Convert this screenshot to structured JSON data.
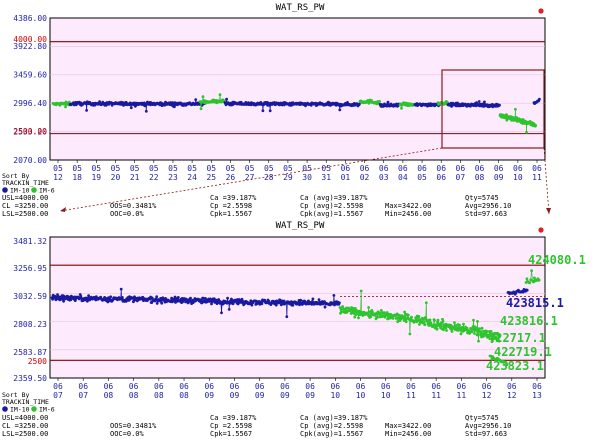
{
  "chart_data": [
    {
      "type": "scatter",
      "title": "WAT_RS_PW",
      "ylim": [
        2070.0,
        4386.0
      ],
      "y_tick_labels": [
        "4386.00",
        "3922.80",
        "3459.60",
        "2996.40",
        "2533.20",
        "2070.00"
      ],
      "control_lines": [
        {
          "label": "4000.00",
          "value": 4000.0
        },
        {
          "label": "2500.00",
          "value": 2500.0
        }
      ],
      "x_tick_labels": [
        [
          "05",
          "12"
        ],
        [
          "05",
          "18"
        ],
        [
          "05",
          "19"
        ],
        [
          "05",
          "20"
        ],
        [
          "05",
          "21"
        ],
        [
          "05",
          "22"
        ],
        [
          "05",
          "23"
        ],
        [
          "05",
          "24"
        ],
        [
          "05",
          "25"
        ],
        [
          "05",
          "26"
        ],
        [
          "05",
          "27"
        ],
        [
          "05",
          "28"
        ],
        [
          "05",
          "29"
        ],
        [
          "05",
          "30"
        ],
        [
          "05",
          "31"
        ],
        [
          "06",
          "01"
        ],
        [
          "06",
          "02"
        ],
        [
          "06",
          "03"
        ],
        [
          "06",
          "04"
        ],
        [
          "06",
          "05"
        ],
        [
          "06",
          "06"
        ],
        [
          "06",
          "07"
        ],
        [
          "06",
          "08"
        ],
        [
          "06",
          "09"
        ],
        [
          "06",
          "10"
        ],
        [
          "06",
          "11"
        ]
      ],
      "series": [
        {
          "name": "IM-10",
          "color": "#1a1aa0"
        },
        {
          "name": "IM-6",
          "color": "#2ec42e"
        }
      ],
      "zoom_box": true
    },
    {
      "type": "scatter",
      "title": "WAT_RS_PW",
      "ylim": [
        2359.5,
        3481.32
      ],
      "y_tick_labels": [
        "3481.32",
        "3256.95",
        "3032.59",
        "2808.23",
        "2583.87",
        "2359.50"
      ],
      "control_lines": [
        {
          "label": "2500",
          "value": 2500.0
        },
        {
          "label": "",
          "value": 3256.95
        }
      ],
      "x_tick_labels": [
        [
          "06",
          "07"
        ],
        [
          "06",
          "07"
        ],
        [
          "06",
          "08"
        ],
        [
          "06",
          "08"
        ],
        [
          "06",
          "08"
        ],
        [
          "06",
          "08"
        ],
        [
          "06",
          "09"
        ],
        [
          "06",
          "09"
        ],
        [
          "06",
          "09"
        ],
        [
          "06",
          "09"
        ],
        [
          "06",
          "09"
        ],
        [
          "06",
          "10"
        ],
        [
          "06",
          "10"
        ],
        [
          "06",
          "10"
        ],
        [
          "06",
          "11"
        ],
        [
          "06",
          "11"
        ],
        [
          "06",
          "11"
        ],
        [
          "06",
          "12"
        ],
        [
          "06",
          "12"
        ],
        [
          "06",
          "13"
        ]
      ],
      "series": [
        {
          "name": "IM-10",
          "color": "#1a1aa0"
        },
        {
          "name": "IM-6",
          "color": "#2ec42e"
        }
      ],
      "annotations": [
        {
          "text": "424080.1",
          "color": "#2ec42e"
        },
        {
          "text": "423815.1",
          "color": "#1a1aa0"
        },
        {
          "text": "423816.1",
          "color": "#2ec42e"
        },
        {
          "text": "422717.1",
          "color": "#2ec42e"
        },
        {
          "text": "422719.1",
          "color": "#2ec42e"
        },
        {
          "text": "423823.1",
          "color": "#2ec42e"
        }
      ]
    }
  ],
  "legend": {
    "sort_by": "Sort By",
    "tracking": "TRACKIN_TIME",
    "im10": "IM-10",
    "im6": "IM-6"
  },
  "stats": {
    "usl": "USL=4000.00",
    "cl": "CL =3250.00",
    "lsl": "LSL=2500.00",
    "oos": "OOS=0.3481%",
    "ooc": "OOC=0.0%",
    "ca": "Ca =39.187%",
    "cp": "Cp =2.5598",
    "cpk": "Cpk=1.5567",
    "ca_avg": "Ca (avg)=39.187%",
    "cp_avg": "Cp (avg)=2.5598",
    "cpk_avg": "Cpk(avg)=1.5567",
    "max": "Max=3422.00",
    "min": "Min=2456.00",
    "qty": "Qty=5745",
    "avg": "Avg=2956.10",
    "std": "Std=97.663"
  },
  "colors": {
    "plot_bg": "#fdeafd",
    "axis": "#000000",
    "limit": "#8b0000",
    "im10": "#1a1aa0",
    "im6": "#2ec42e",
    "zoom": "#8b1a1a",
    "label_blue": "#2222aa",
    "label_red": "#cc0000"
  }
}
